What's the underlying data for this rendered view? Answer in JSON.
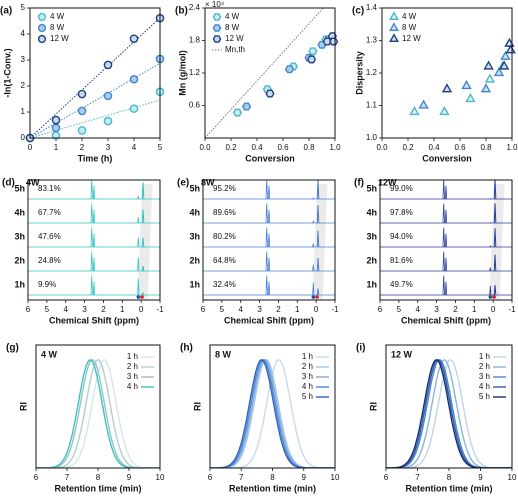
{
  "chart_data": [
    {
      "panel": "(a)",
      "type": "scatter",
      "xlabel": "Time (h)",
      "ylabel": "-ln(1-Conv.)",
      "marker": "circle",
      "fit_lines": true,
      "legend": "upper left",
      "xlim": [
        0,
        5
      ],
      "ylim": [
        0,
        5
      ],
      "xticks": [
        0,
        1,
        2,
        3,
        4,
        5
      ],
      "yticks": [
        0,
        1,
        2,
        3,
        4,
        5
      ],
      "series": [
        {
          "name": "4 W",
          "color": "#4fb6c6",
          "fill": "#bdeef4",
          "x": [
            0,
            1,
            2,
            3,
            4,
            5
          ],
          "values": [
            0,
            0.1,
            0.29,
            0.65,
            1.13,
            1.78
          ]
        },
        {
          "name": "8 W",
          "color": "#3f86c8",
          "fill": "#a9cdef",
          "x": [
            0,
            1,
            2,
            3,
            4,
            5
          ],
          "values": [
            0,
            0.39,
            1.04,
            1.62,
            2.26,
            3.04
          ]
        },
        {
          "name": "12 W",
          "color": "#1f3f7f",
          "fill": "#c9d9ee",
          "x": [
            0,
            1,
            2,
            3,
            4,
            5
          ],
          "values": [
            0,
            0.69,
            1.69,
            2.81,
            3.82,
            4.61
          ]
        }
      ]
    },
    {
      "panel": "(b)",
      "type": "scatter",
      "xlabel": "Conversion",
      "ylabel": "Mn (g/mol)",
      "annotation": "× 10⁴",
      "marker": "hexagon",
      "legend": "upper left",
      "xlim": [
        0,
        1
      ],
      "ylim": [
        0,
        2.4
      ],
      "xticks": [
        {
          "value": 0,
          "label": "0.0"
        },
        0.2,
        0.4,
        0.6,
        0.8,
        {
          "value": 1,
          "label": "1.0"
        }
      ],
      "yticks": [
        0.6,
        1.2,
        1.8,
        2.4
      ],
      "series": [
        {
          "name": "4 W",
          "color": "#4fb6c6",
          "fill": "#bdeef4",
          "x": [
            0.25,
            0.48,
            0.68,
            0.83,
            0.93
          ],
          "values": [
            0.47,
            0.9,
            1.32,
            1.6,
            1.82
          ]
        },
        {
          "name": "8 W",
          "color": "#3f86c8",
          "fill": "#a9cdef",
          "x": [
            0.32,
            0.65,
            0.8,
            0.9,
            0.95
          ],
          "values": [
            0.58,
            1.27,
            1.48,
            1.72,
            1.82
          ]
        },
        {
          "name": "12 W",
          "color": "#1f3f7f",
          "fill": "#c9d9ee",
          "x": [
            0.5,
            0.82,
            0.94,
            0.98,
            0.99
          ],
          "values": [
            0.82,
            1.45,
            1.78,
            1.88,
            1.78
          ]
        }
      ],
      "theory": {
        "name": "Mn,th",
        "color": "#777777",
        "x": [
          0,
          0.91
        ],
        "values": [
          0,
          2.4
        ]
      }
    },
    {
      "panel": "(c)",
      "type": "scatter",
      "xlabel": "Conversion",
      "ylabel": "Dispersity",
      "marker": "triangle",
      "legend": "upper left",
      "xlim": [
        0,
        1
      ],
      "ylim": [
        1,
        1.4
      ],
      "xticks": [
        {
          "value": 0,
          "label": "0.0"
        },
        0.2,
        0.4,
        0.6,
        0.8,
        {
          "value": 1,
          "label": "1.0"
        }
      ],
      "yticks": [
        {
          "value": 1,
          "label": "1.0"
        },
        1.1,
        1.2,
        1.3,
        1.4
      ],
      "series": [
        {
          "name": "4 W",
          "color": "#4fb6c6",
          "fill": "#d6f3f7",
          "x": [
            0.25,
            0.48,
            0.68,
            0.83,
            0.93
          ],
          "values": [
            1.08,
            1.08,
            1.12,
            1.18,
            1.22
          ]
        },
        {
          "name": "8 W",
          "color": "#3f86c8",
          "fill": "#cfe2f5",
          "x": [
            0.32,
            0.65,
            0.8,
            0.9,
            0.95
          ],
          "values": [
            1.1,
            1.16,
            1.15,
            1.2,
            1.25
          ]
        },
        {
          "name": "12 W",
          "color": "#1f3f7f",
          "fill": "#d5dff0",
          "x": [
            0.5,
            0.82,
            0.94,
            0.98,
            0.99
          ],
          "values": [
            1.15,
            1.22,
            1.22,
            1.29,
            1.27
          ]
        }
      ]
    },
    {
      "panel": "(d)",
      "type": "nmr",
      "label": "4W",
      "color": "#33c4c4",
      "xlabel": "Chemical Shift (ppm)",
      "xlim": [
        6,
        -1
      ],
      "xticks": [
        6,
        5,
        4,
        3,
        2,
        1,
        0,
        -1
      ],
      "times": [
        "1h",
        "2h",
        "3h",
        "4h",
        "5h"
      ],
      "values": [
        9.9,
        24.8,
        47.6,
        67.7,
        83.1
      ],
      "value_labels": [
        "9.9%",
        "24.8%",
        "47.6%",
        "67.7%",
        "83.1%"
      ]
    },
    {
      "panel": "(e)",
      "type": "nmr",
      "label": "8W",
      "color": "#4a7fd0",
      "xlabel": "Chemical Shift (ppm)",
      "xlim": [
        6,
        -1
      ],
      "xticks": [
        6,
        5,
        4,
        3,
        2,
        1,
        0,
        -1
      ],
      "times": [
        "1h",
        "2h",
        "3h",
        "4h",
        "5h"
      ],
      "values": [
        32.4,
        64.8,
        80.2,
        89.6,
        95.2
      ],
      "value_labels": [
        "32.4%",
        "64.8%",
        "80.2%",
        "89.6%",
        "95.2%"
      ]
    },
    {
      "panel": "(f)",
      "type": "nmr",
      "label": "12W",
      "color": "#2a3f9a",
      "xlabel": "Chemical Shift (ppm)",
      "xlim": [
        6,
        -1
      ],
      "xticks": [
        6,
        5,
        4,
        3,
        2,
        1,
        0,
        -1
      ],
      "times": [
        "1h",
        "2h",
        "3h",
        "4h",
        "5h"
      ],
      "values": [
        49.7,
        81.6,
        94.0,
        97.8,
        99.0
      ],
      "value_labels": [
        "49.7%",
        "81.6%",
        "94.0%",
        "97.8%",
        "99.0%"
      ]
    },
    {
      "panel": "(g)",
      "type": "gpc",
      "label": "4 W",
      "xlabel": "Retention time (min)",
      "ylabel": "RI",
      "legend": "upper right",
      "xlim": [
        6,
        10
      ],
      "xticks": [
        6,
        7,
        8,
        9,
        10
      ],
      "series": [
        {
          "name": "1 h",
          "color": "#d6e6e8",
          "peak": 8.2
        },
        {
          "name": "2 h",
          "color": "#b4ccd0",
          "peak": 8.0
        },
        {
          "name": "3 h",
          "color": "#94c2c6",
          "peak": 7.82
        },
        {
          "name": "4 h",
          "color": "#3cc0c0",
          "peak": 7.75
        }
      ]
    },
    {
      "panel": "(h)",
      "type": "gpc",
      "label": "8 W",
      "xlabel": "Retention time (min)",
      "ylabel": "RI",
      "legend": "upper right",
      "xlim": [
        6,
        10
      ],
      "xticks": [
        6,
        7,
        8,
        9,
        10
      ],
      "series": [
        {
          "name": "1 h",
          "color": "#c8d8ec",
          "peak": 8.2
        },
        {
          "name": "2 h",
          "color": "#a8c4e8",
          "peak": 7.8
        },
        {
          "name": "3 h",
          "color": "#7aa8dc",
          "peak": 7.75
        },
        {
          "name": "4 h",
          "color": "#4a88d0",
          "peak": 7.7
        },
        {
          "name": "5 h",
          "color": "#3060c0",
          "peak": 7.65
        }
      ]
    },
    {
      "panel": "(i)",
      "type": "gpc",
      "label": "12 W",
      "xlabel": "Retention time (min)",
      "ylabel": "RI",
      "legend": "upper right",
      "xlim": [
        6,
        10
      ],
      "xticks": [
        6,
        7,
        8,
        9,
        10
      ],
      "series": [
        {
          "name": "1 h",
          "color": "#c0d4ec",
          "peak": 8.05
        },
        {
          "name": "2 h",
          "color": "#8ab4e0",
          "peak": 7.85
        },
        {
          "name": "3 h",
          "color": "#4a88cc",
          "peak": 7.7
        },
        {
          "name": "4 h",
          "color": "#2a5caa",
          "peak": 7.65
        },
        {
          "name": "5 h",
          "color": "#1a2a70",
          "peak": 7.6
        }
      ]
    }
  ]
}
